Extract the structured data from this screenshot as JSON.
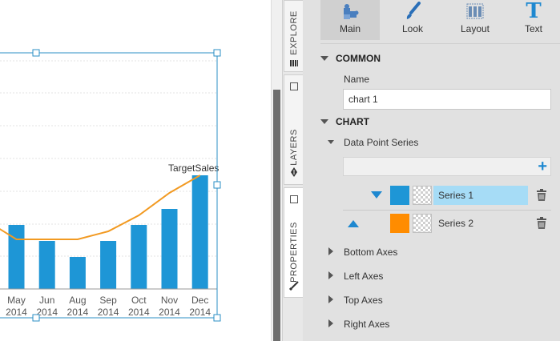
{
  "chart": {
    "x_labels": [
      {
        "month": "May",
        "year": "2014"
      },
      {
        "month": "Jun",
        "year": "2014"
      },
      {
        "month": "Aug",
        "year": "2014"
      },
      {
        "month": "Sep",
        "year": "2014"
      },
      {
        "month": "Oct",
        "year": "2014"
      },
      {
        "month": "Nov",
        "year": "2014"
      },
      {
        "month": "Dec",
        "year": "2014"
      }
    ],
    "series_label": "TargetSales",
    "bar_color": "#1e96d6",
    "line_color": "#f29a22"
  },
  "chart_data": {
    "type": "bar",
    "categories": [
      "May 2014",
      "Jun 2014",
      "Aug 2014",
      "Sep 2014",
      "Oct 2014",
      "Nov 2014",
      "Dec 2014"
    ],
    "series": [
      {
        "values": [
          80,
          60,
          40,
          60,
          80,
          100,
          142
        ]
      },
      {
        "name": "TargetSales",
        "type": "line",
        "values": [
          62,
          62,
          62,
          72,
          92,
          120,
          142
        ],
        "values_note_partial_left": 76
      }
    ],
    "grid": true
  },
  "tabs": {
    "explore": "EXPLORE",
    "layers": "LAYERS",
    "properties": "PROPERTIES"
  },
  "toolbar": {
    "main": "Main",
    "look": "Look",
    "layout": "Layout",
    "text": "Text",
    "text_icon_glyph": "T"
  },
  "panel": {
    "common_section": "COMMON",
    "name_label": "Name",
    "name_value": "chart 1",
    "chart_section": "CHART",
    "data_point_series": "Data Point Series",
    "add_glyph": "+",
    "series": [
      {
        "name": "Series 1",
        "color": "#1e96d6"
      },
      {
        "name": "Series 2",
        "color": "#ff8c00"
      }
    ],
    "bottom_axes": "Bottom Axes",
    "left_axes": "Left Axes",
    "top_axes": "Top Axes",
    "right_axes": "Right Axes"
  }
}
